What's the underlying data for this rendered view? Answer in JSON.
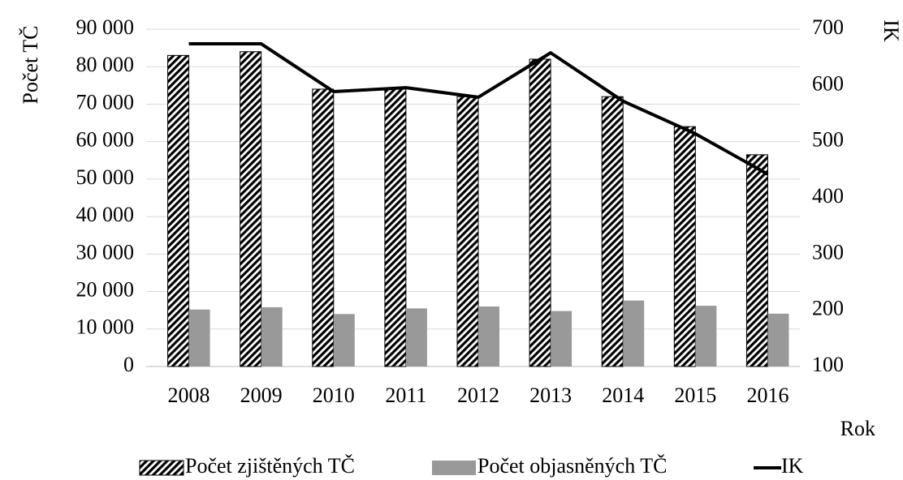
{
  "chart_data": {
    "type": "bar",
    "y_label": "Počet TČ",
    "y2_label": "IK",
    "x_label": "Rok",
    "categories": [
      "2008",
      "2009",
      "2010",
      "2011",
      "2012",
      "2013",
      "2014",
      "2015",
      "2016"
    ],
    "series": [
      {
        "name": "Počet zjištěných TČ",
        "color": "#000000",
        "hatch": true,
        "type": "bar",
        "values": [
          83000,
          84000,
          74000,
          74000,
          72000,
          82000,
          72000,
          64000,
          56500
        ]
      },
      {
        "name": "Počet objasněných TČ",
        "color": "#999999",
        "type": "bar",
        "values": [
          15200,
          15800,
          14000,
          15500,
          16000,
          14800,
          17600,
          16200,
          14100
        ]
      },
      {
        "name": "IK",
        "color": "#000000",
        "type": "line",
        "axis": "y2",
        "values": [
          674,
          674,
          589,
          596,
          579,
          658,
          572,
          514,
          442
        ]
      }
    ],
    "ylim": [
      0,
      90000
    ],
    "yticks": [
      0,
      {
        "value": 10000,
        "label": "10 000"
      },
      {
        "value": 20000,
        "label": "20 000"
      },
      {
        "value": 30000,
        "label": "30 000"
      },
      {
        "value": 40000,
        "label": "40 000"
      },
      {
        "value": 50000,
        "label": "50 000"
      },
      {
        "value": 60000,
        "label": "60 000"
      },
      {
        "value": 70000,
        "label": "70 000"
      },
      {
        "value": 80000,
        "label": "80 000"
      },
      {
        "value": 90000,
        "label": "90 000"
      }
    ],
    "y2lim": [
      100,
      700
    ],
    "y2ticks": [
      100,
      200,
      300,
      400,
      500,
      600,
      700
    ],
    "grid": true,
    "legend": "bottom"
  }
}
